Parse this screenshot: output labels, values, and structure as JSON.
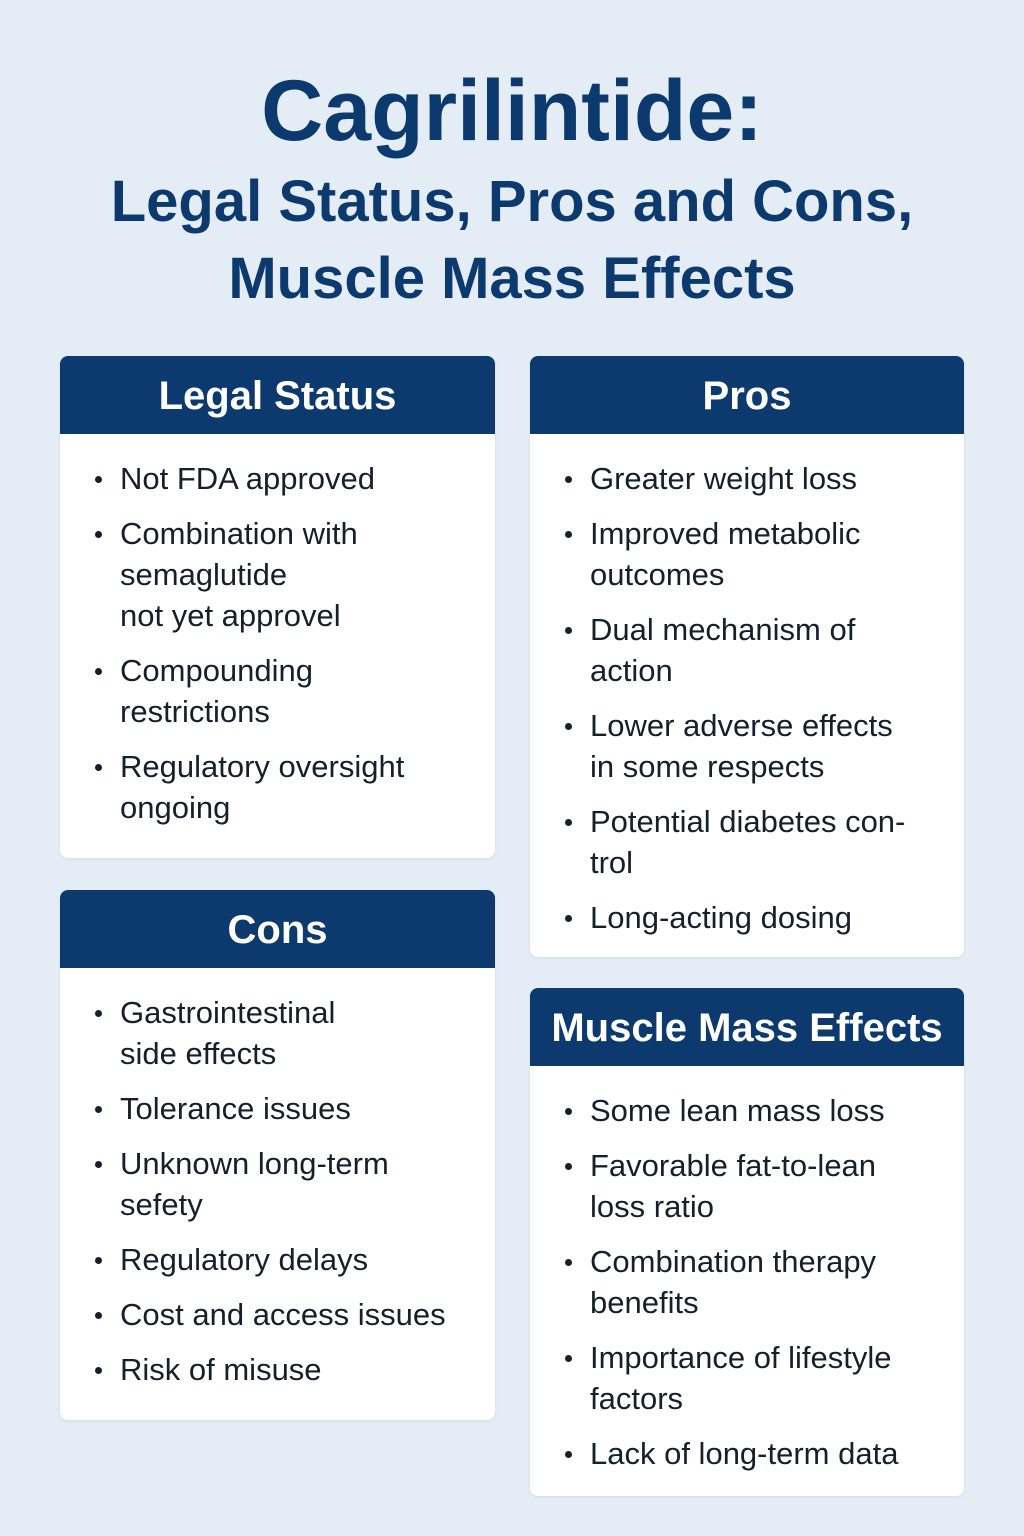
{
  "header": {
    "title": "Cagrilintide:",
    "subtitle_lines": [
      "Legal Status, Pros and Cons,",
      "Muscle Mass Effects"
    ]
  },
  "cards": [
    {
      "heading": "Legal Status",
      "items": [
        [
          "Not FDA approved"
        ],
        [
          "Combination with",
          "semaglutide",
          "not yet approvel"
        ],
        [
          "Compounding",
          "restrictions"
        ],
        [
          "Regulatory oversight",
          "ongoing"
        ]
      ]
    },
    {
      "heading": "Pros",
      "items": [
        [
          "Greater weight loss"
        ],
        [
          "Improved metabolic",
          "outcomes"
        ],
        [
          "Dual mechanism of",
          "action"
        ],
        [
          "Lower adverse effects",
          "in some respects"
        ],
        [
          "Potential diabetes con-",
          "trol"
        ],
        [
          "Long-acting dosing"
        ]
      ]
    },
    {
      "heading": "Cons",
      "items": [
        [
          "Gastrointestinal",
          "side effects"
        ],
        [
          "Tolerance issues"
        ],
        [
          "Unknown long-term",
          "sefety"
        ],
        [
          "Regulatory delays"
        ],
        [
          "Cost and access issues"
        ],
        [
          "Risk of misuse"
        ]
      ]
    },
    {
      "heading": "Muscle Mass Effects",
      "items": [
        [
          "Some lean mass loss"
        ],
        [
          "Favorable fat-to-lean",
          "loss ratio"
        ],
        [
          "Combination therapy",
          "benefits"
        ],
        [
          "Importance of lifestyle",
          "factors"
        ],
        [
          "Lack of long-term data"
        ]
      ]
    }
  ]
}
